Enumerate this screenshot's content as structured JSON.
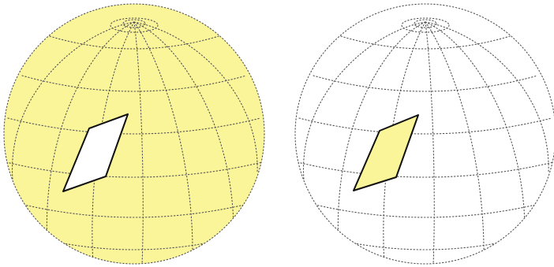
{
  "figure": {
    "panels": [
      {
        "id": "left",
        "sphere_fill": "#fbf59a",
        "patch_fill": "#ffffff"
      },
      {
        "id": "right",
        "sphere_fill": "#ffffff",
        "patch_fill": "#fbf59a"
      }
    ],
    "colors": {
      "highlight_yellow": "#fbf59a",
      "grid_line": "#555555",
      "patch_outline": "#111111",
      "background": "#ffffff"
    },
    "grid_style": "dotted"
  }
}
